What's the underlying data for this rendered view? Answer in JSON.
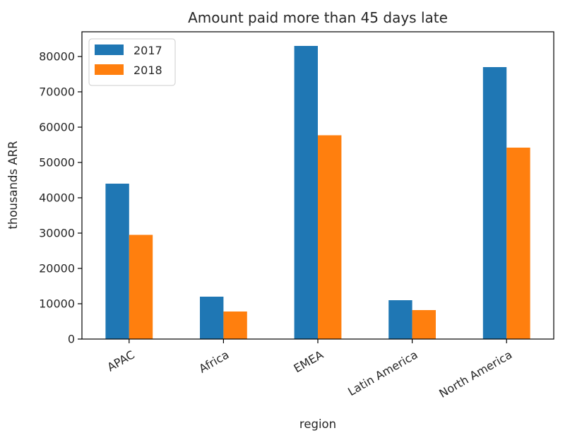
{
  "chart_data": {
    "type": "bar",
    "title": "Amount paid more than 45 days late",
    "xlabel": "region",
    "ylabel": "thousands ARR",
    "categories": [
      "APAC",
      "Africa",
      "EMEA",
      "Latin America",
      "North America"
    ],
    "series": [
      {
        "name": "2017",
        "values": [
          44000,
          12000,
          83000,
          11000,
          77000
        ]
      },
      {
        "name": "2018",
        "values": [
          29500,
          7800,
          57700,
          8200,
          54200
        ]
      }
    ],
    "ylim": [
      0,
      87000
    ],
    "yticks": [
      0,
      10000,
      20000,
      30000,
      40000,
      50000,
      60000,
      70000,
      80000
    ],
    "grid": false,
    "legend_position": "top-left",
    "colors": [
      "#1f77b4",
      "#ff7f0e"
    ]
  }
}
